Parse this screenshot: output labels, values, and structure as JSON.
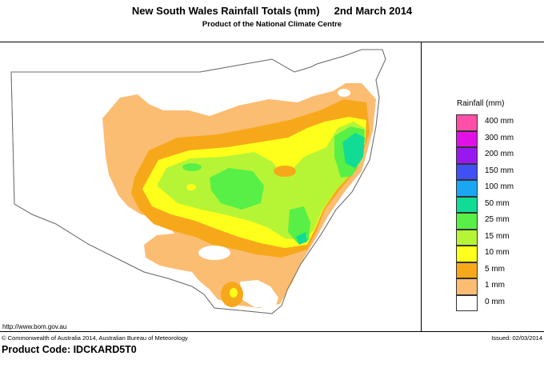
{
  "header": {
    "title": "New South Wales Rainfall Totals (mm)     2nd March 2014",
    "subtitle": "Product of the National Climate Centre"
  },
  "legend": {
    "title": "Rainfall (mm)",
    "items": [
      {
        "label": "400 mm",
        "color": "#ff4fa6"
      },
      {
        "label": "300 mm",
        "color": "#e011e6"
      },
      {
        "label": "200 mm",
        "color": "#9a18f0"
      },
      {
        "label": "150 mm",
        "color": "#4050f2"
      },
      {
        "label": "100 mm",
        "color": "#1aa6f2"
      },
      {
        "label": "50 mm",
        "color": "#10dc96"
      },
      {
        "label": "25 mm",
        "color": "#58f046"
      },
      {
        "label": "15 mm",
        "color": "#b6f536"
      },
      {
        "label": "10 mm",
        "color": "#ffff1c"
      },
      {
        "label": "5 mm",
        "color": "#f7a81a"
      },
      {
        "label": "1 mm",
        "color": "#fbbd72"
      },
      {
        "label": "0 mm",
        "color": "#ffffff"
      }
    ]
  },
  "footer": {
    "url": "http://www.bom.gov.au",
    "copyright": "© Commonwealth of Australia 2014, Australian Bureau of Meteorology",
    "issued": "Issued: 02/03/2014",
    "product_code": "Product Code: IDCKARD5T0"
  }
}
